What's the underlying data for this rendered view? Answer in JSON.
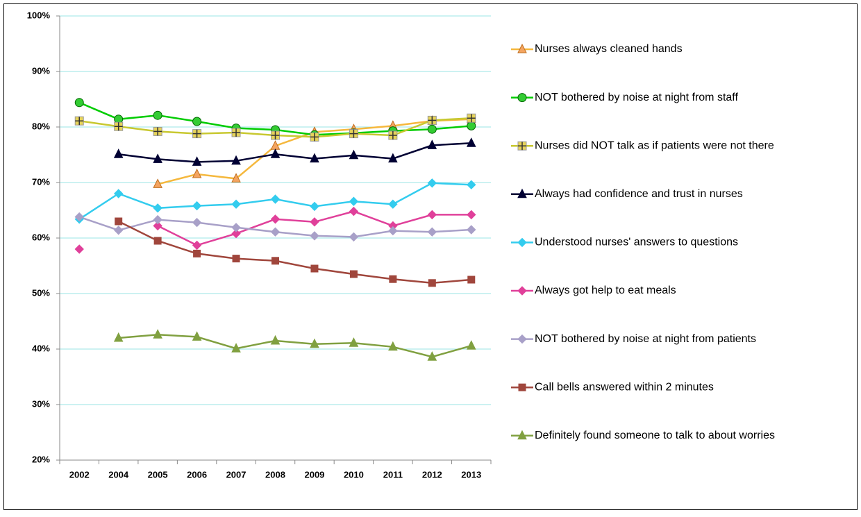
{
  "chart_data": {
    "type": "line",
    "categories": [
      "2002",
      "2004",
      "2005",
      "2006",
      "2007",
      "2008",
      "2009",
      "2010",
      "2011",
      "2012",
      "2013"
    ],
    "ylim": [
      20,
      100
    ],
    "yticks": [
      {
        "value": 20,
        "label": "20%"
      },
      {
        "value": 30,
        "label": "30%"
      },
      {
        "value": 40,
        "label": "40%"
      },
      {
        "value": 50,
        "label": "50%"
      },
      {
        "value": 60,
        "label": "60%"
      },
      {
        "value": 70,
        "label": "70%"
      },
      {
        "value": 80,
        "label": "80%"
      },
      {
        "value": 90,
        "label": "90%"
      },
      {
        "value": 100,
        "label": "100%"
      }
    ],
    "grid": true,
    "legend": "right",
    "series": [
      {
        "name": "Nurses always cleaned hands",
        "color": "#f5b83d",
        "marker": "triangle",
        "marker_color": "#f4a460",
        "values": [
          null,
          null,
          69.7,
          71.5,
          70.7,
          76.6,
          79.1,
          79.6,
          80.2,
          81.1,
          81.4
        ]
      },
      {
        "name": "NOT bothered by noise at night from staff",
        "color": "#00cc00",
        "marker": "circle",
        "marker_color": "#33cc33",
        "values": [
          84.4,
          81.4,
          82.1,
          81.0,
          79.8,
          79.5,
          78.6,
          78.9,
          79.3,
          79.6,
          80.2
        ]
      },
      {
        "name": "Nurses did NOT talk as if patients were not there",
        "color": "#c8c830",
        "marker": "plus",
        "marker_color": "#e6d35a",
        "values": [
          81.1,
          80.1,
          79.2,
          78.8,
          79.0,
          78.5,
          78.2,
          78.8,
          78.5,
          81.2,
          81.6
        ]
      },
      {
        "name": "Always had confidence and trust in nurses",
        "color": "#000033",
        "marker": "triangle",
        "marker_color": "#000033",
        "values": [
          null,
          75.1,
          74.2,
          73.7,
          73.9,
          75.1,
          74.3,
          74.9,
          74.3,
          76.7,
          77.1
        ]
      },
      {
        "name": "Understood nurses' answers to questions",
        "color": "#33ccee",
        "marker": "diamond",
        "marker_color": "#33ccee",
        "values": [
          63.4,
          68.0,
          65.4,
          65.8,
          66.1,
          67.0,
          65.7,
          66.6,
          66.1,
          69.9,
          69.6
        ]
      },
      {
        "name": "Always got help to eat meals",
        "color": "#e0409a",
        "marker": "diamond",
        "marker_color": "#e0409a",
        "values": [
          58.0,
          null,
          62.2,
          58.7,
          60.8,
          63.4,
          62.9,
          64.8,
          62.2,
          64.2,
          64.2
        ]
      },
      {
        "name": "NOT bothered by noise at night from patients",
        "color": "#a8a0c8",
        "marker": "diamond",
        "marker_color": "#a8a0c8",
        "values": [
          63.8,
          61.4,
          63.3,
          62.8,
          61.9,
          61.1,
          60.4,
          60.2,
          61.3,
          61.1,
          61.5
        ]
      },
      {
        "name": "Call bells answered within 2 minutes",
        "color": "#a0463c",
        "marker": "square",
        "marker_color": "#a0463c",
        "values": [
          null,
          63.0,
          59.5,
          57.2,
          56.3,
          55.9,
          54.5,
          53.5,
          52.6,
          51.9,
          52.5
        ]
      },
      {
        "name": "Definitely found someone to talk to about worries",
        "color": "#80a040",
        "marker": "triangle",
        "marker_color": "#80a040",
        "values": [
          null,
          42.0,
          42.6,
          42.2,
          40.1,
          41.5,
          40.9,
          41.1,
          40.4,
          38.6,
          40.6
        ]
      }
    ]
  }
}
